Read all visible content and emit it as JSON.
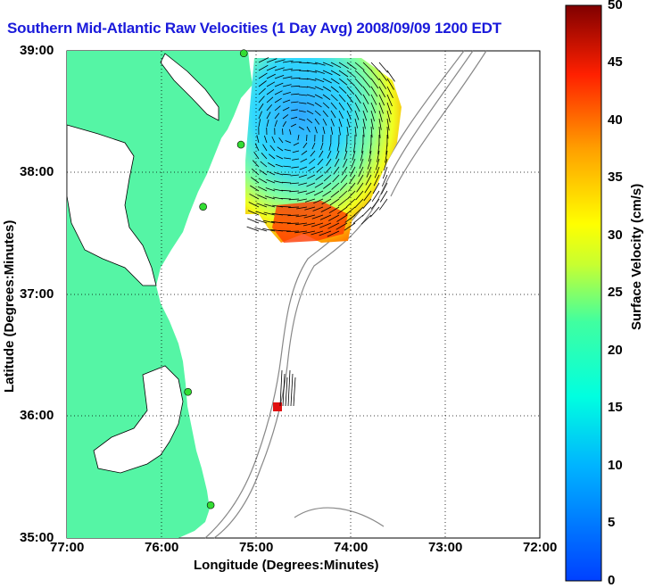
{
  "title": "Southern Mid-Atlantic Raw Velocities (1 Day Avg) 2008/09/09 1200 EDT",
  "axes": {
    "xlabel": "Longitude (Degrees:Minutes)",
    "ylabel": "Latitude (Degrees:Minutes)",
    "xticks": [
      "77:00",
      "76:00",
      "75:00",
      "74:00",
      "73:00",
      "72:00"
    ],
    "yticks": [
      "39:00",
      "38:00",
      "37:00",
      "36:00",
      "35:00"
    ]
  },
  "colorbar": {
    "label": "Surface Velocity (cm/s)",
    "ticks": [
      "0",
      "5",
      "10",
      "15",
      "20",
      "25",
      "30",
      "35",
      "40",
      "45",
      "50"
    ],
    "min": 0,
    "max": 50
  },
  "colors": {
    "land": "#55f5a5",
    "water": "#ffffff",
    "title": "#1a1adb",
    "station": "#33dd33",
    "bathymetry": "#888888"
  },
  "map": {
    "lon_range": [
      -77,
      -72
    ],
    "lat_range": [
      35,
      39
    ],
    "grid": "dotted",
    "stations": [
      {
        "lon": -75.13,
        "lat": 38.98
      },
      {
        "lon": -75.16,
        "lat": 38.23
      },
      {
        "lon": -75.56,
        "lat": 37.72
      },
      {
        "lon": -75.72,
        "lat": 36.2
      },
      {
        "lon": -75.48,
        "lat": 35.27
      }
    ]
  }
}
